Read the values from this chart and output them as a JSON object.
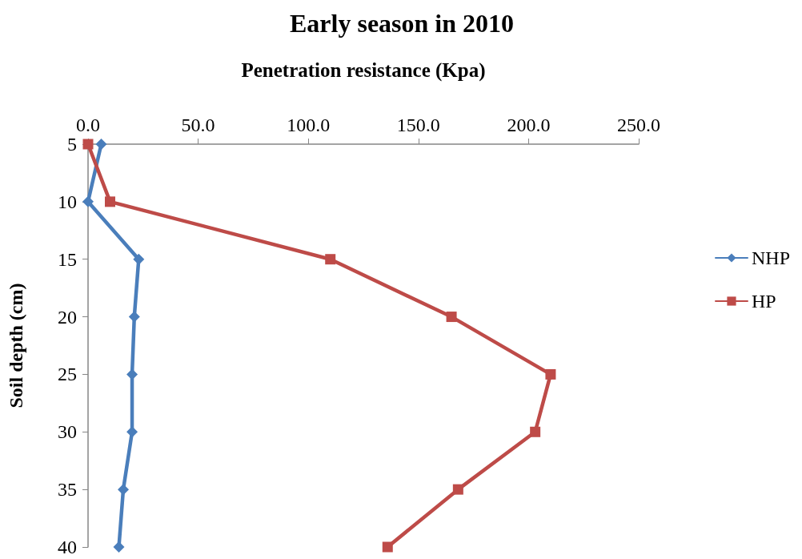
{
  "chart_data": {
    "type": "line",
    "title": "Early season in 2010",
    "xlabel": "Penetration resistance (Kpa)",
    "ylabel": "Soil depth (cm)",
    "xlim": [
      0,
      250
    ],
    "xticks": [
      {
        "value": 0,
        "label": "0.0"
      },
      {
        "value": 50,
        "label": "50.0"
      },
      {
        "value": 100,
        "label": "100.0"
      },
      {
        "value": 150,
        "label": "150.0"
      },
      {
        "value": 200,
        "label": "200.0"
      },
      {
        "value": 250,
        "label": "250.0"
      }
    ],
    "ylim": [
      40,
      5
    ],
    "yticks": [
      5,
      10,
      15,
      20,
      25,
      30,
      35,
      40
    ],
    "series": [
      {
        "name": "NHP",
        "color": "#4a7ebb",
        "marker": "diamond",
        "x": [
          6,
          0,
          23,
          21,
          20,
          20,
          16,
          14
        ],
        "values": [
          5,
          10,
          15,
          20,
          25,
          30,
          35,
          40
        ]
      },
      {
        "name": "HP",
        "color": "#be4b48",
        "marker": "square",
        "x": [
          0,
          10,
          110,
          165,
          210,
          203,
          168,
          136
        ],
        "values": [
          5,
          10,
          15,
          20,
          25,
          30,
          35,
          40
        ]
      }
    ],
    "legend": "right",
    "grid": false
  }
}
